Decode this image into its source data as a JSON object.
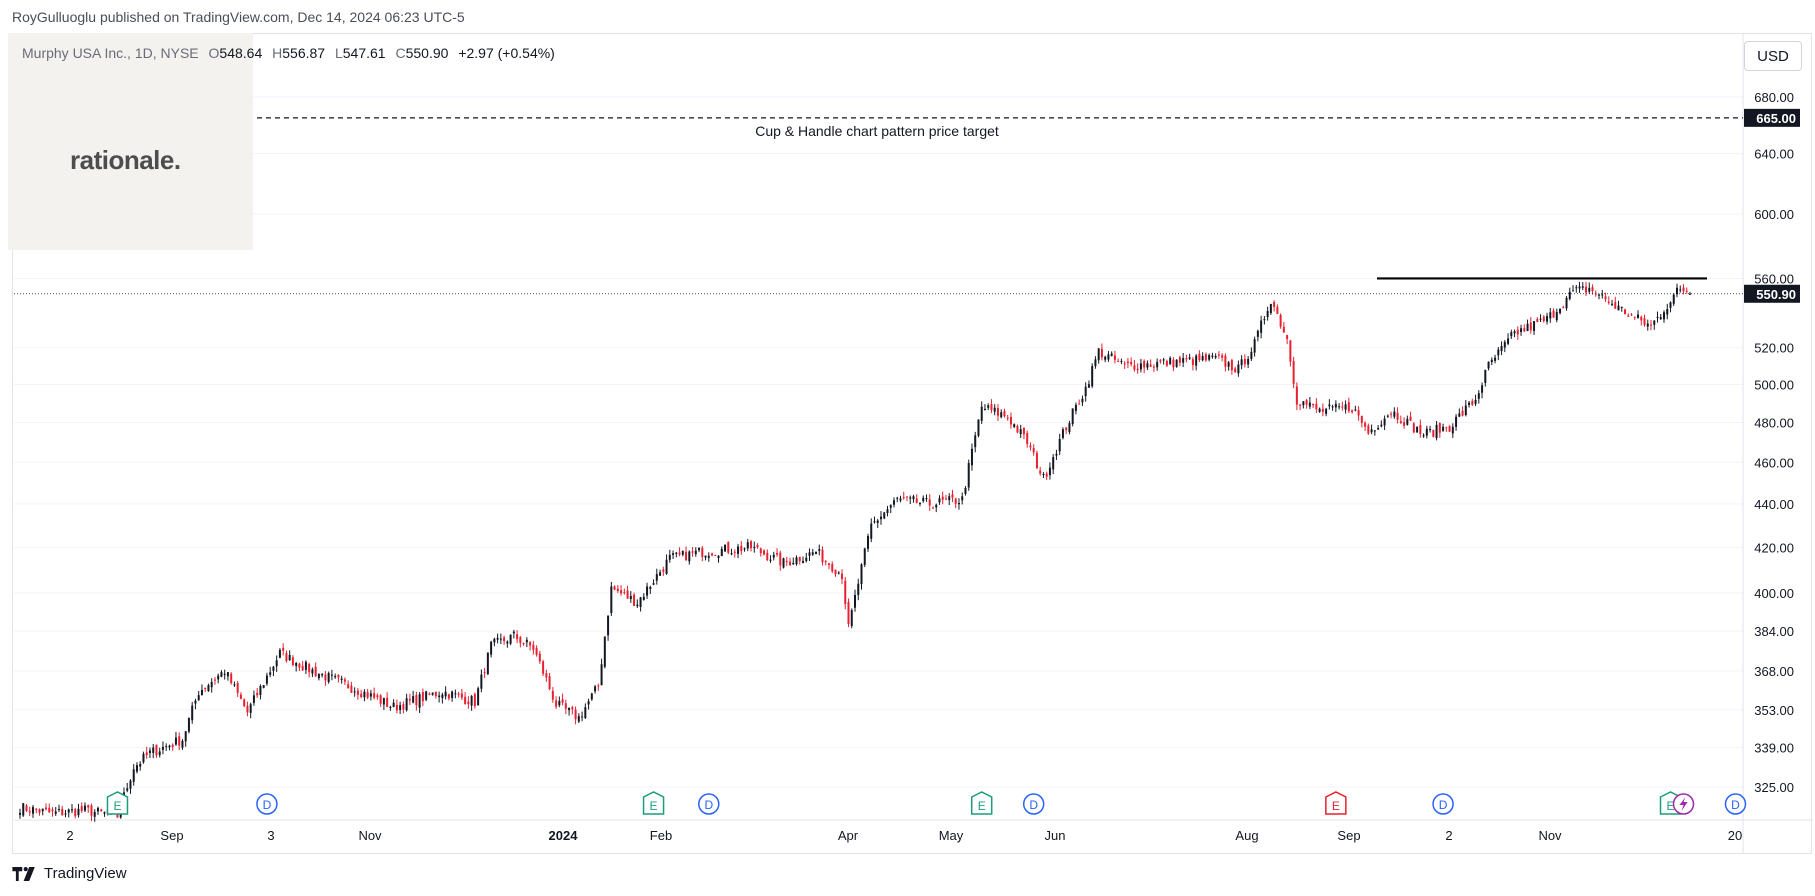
{
  "header": {
    "published": "RoyGulluoglu published on TradingView.com, Dec 14, 2024 06:23 UTC-5"
  },
  "watermark": {
    "text": "rationale."
  },
  "legend": {
    "symbol": "Murphy USA Inc., 1D, NYSE",
    "open_label": "O",
    "open": "548.64",
    "high_label": "H",
    "high": "556.87",
    "low_label": "L",
    "low": "547.61",
    "close_label": "C",
    "close": "550.90",
    "change": "+2.97 (+0.54%)"
  },
  "currency": "USD",
  "footer": {
    "brand": "TradingView"
  },
  "colors": {
    "up": "#131722",
    "down": "#e8202f",
    "grid": "#f0f3fa",
    "axis_text": "#131722",
    "price_label_bg": "#131722",
    "earnings": "#1a9e7a",
    "dividend": "#2962ff",
    "earnings_future": "#e8202f",
    "split": "#9c27b0"
  },
  "chart_data": {
    "type": "candlestick",
    "scale": "log",
    "y_ticks": [
      325,
      339,
      353,
      368,
      384,
      400,
      420,
      440,
      460,
      480,
      500,
      520,
      560,
      600,
      640,
      680
    ],
    "y_tick_labels": [
      "325.00",
      "339.00",
      "353.00",
      "368.00",
      "384.00",
      "400.00",
      "420.00",
      "440.00",
      "460.00",
      "480.00",
      "500.00",
      "520.00",
      "560.00",
      "600.00",
      "640.00",
      "680.00"
    ],
    "x_ticks": [
      {
        "label": "2",
        "bold": false
      },
      {
        "label": "Sep",
        "bold": false
      },
      {
        "label": "3",
        "bold": false
      },
      {
        "label": "Nov",
        "bold": false
      },
      {
        "label": "2024",
        "bold": true
      },
      {
        "label": "Feb",
        "bold": false
      },
      {
        "label": "Apr",
        "bold": false
      },
      {
        "label": "May",
        "bold": false
      },
      {
        "label": "Jun",
        "bold": false
      },
      {
        "label": "Aug",
        "bold": false
      },
      {
        "label": "Sep",
        "bold": false
      },
      {
        "label": "2",
        "bold": false
      },
      {
        "label": "Nov",
        "bold": false
      },
      {
        "label": "20",
        "bold": false
      }
    ],
    "last_price": 550.9,
    "last_price_label": "550.90",
    "target_price": 665.0,
    "target_price_label": "665.00",
    "target_annotation": "Cup & Handle chart pattern price target",
    "resistance": 560,
    "series_anchors": [
      [
        0,
        318
      ],
      [
        10,
        316
      ],
      [
        20,
        317
      ],
      [
        30,
        315
      ],
      [
        35,
        332
      ],
      [
        40,
        337
      ],
      [
        50,
        342
      ],
      [
        55,
        360
      ],
      [
        63,
        368
      ],
      [
        70,
        352
      ],
      [
        80,
        375
      ],
      [
        90,
        368
      ],
      [
        105,
        360
      ],
      [
        115,
        354
      ],
      [
        130,
        360
      ],
      [
        140,
        356
      ],
      [
        145,
        378
      ],
      [
        152,
        382
      ],
      [
        158,
        377
      ],
      [
        165,
        355
      ],
      [
        172,
        350
      ],
      [
        178,
        362
      ],
      [
        182,
        402
      ],
      [
        190,
        396
      ],
      [
        200,
        415
      ],
      [
        210,
        418
      ],
      [
        225,
        420
      ],
      [
        235,
        413
      ],
      [
        245,
        418
      ],
      [
        253,
        408
      ],
      [
        255,
        385
      ],
      [
        262,
        430
      ],
      [
        270,
        442
      ],
      [
        280,
        440
      ],
      [
        290,
        442
      ],
      [
        296,
        488
      ],
      [
        304,
        483
      ],
      [
        310,
        470
      ],
      [
        315,
        452
      ],
      [
        322,
        478
      ],
      [
        328,
        498
      ],
      [
        332,
        518
      ],
      [
        340,
        510
      ],
      [
        355,
        512
      ],
      [
        368,
        514
      ],
      [
        375,
        508
      ],
      [
        380,
        522
      ],
      [
        385,
        548
      ],
      [
        390,
        525
      ],
      [
        393,
        492
      ],
      [
        400,
        486
      ],
      [
        410,
        488
      ],
      [
        415,
        475
      ],
      [
        422,
        486
      ],
      [
        432,
        474
      ],
      [
        440,
        478
      ],
      [
        448,
        492
      ],
      [
        452,
        510
      ],
      [
        460,
        528
      ],
      [
        470,
        536
      ],
      [
        478,
        552
      ],
      [
        483,
        554
      ],
      [
        490,
        545
      ],
      [
        496,
        538
      ],
      [
        502,
        532
      ],
      [
        510,
        552
      ],
      [
        514,
        554
      ]
    ],
    "series_total": 515,
    "events": [
      {
        "type": "E",
        "pos": 30
      },
      {
        "type": "D",
        "pos": 76
      },
      {
        "type": "E",
        "pos": 195
      },
      {
        "type": "D",
        "pos": 212
      },
      {
        "type": "E",
        "pos": 296
      },
      {
        "type": "D",
        "pos": 312
      },
      {
        "type": "Ef",
        "pos": 405
      },
      {
        "type": "D",
        "pos": 438
      },
      {
        "type": "E",
        "pos": 508
      },
      {
        "type": "D",
        "pos": 528
      }
    ]
  }
}
